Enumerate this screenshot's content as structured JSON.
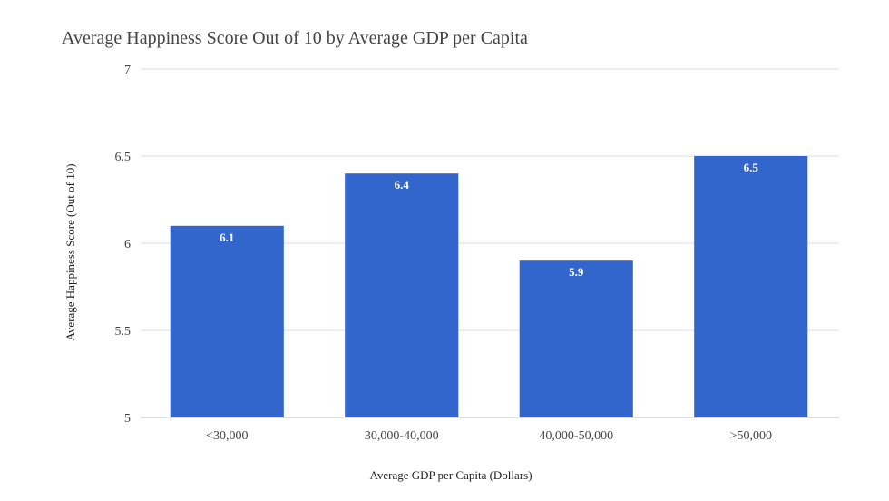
{
  "chart_data": {
    "type": "bar",
    "title": "Average Happiness Score Out of 10 by Average GDP per Capita",
    "xlabel": "Average GDP per Capita (Dollars)",
    "ylabel": "Average Happiness Score (Out of 10)",
    "categories": [
      "<30,000",
      "30,000-40,000",
      "40,000-50,000",
      ">50,000"
    ],
    "values": [
      6.1,
      6.4,
      5.9,
      6.5
    ],
    "data_labels": [
      "6.1",
      "6.4",
      "5.9",
      "6.5"
    ],
    "ylim": [
      5,
      7
    ],
    "yticks": [
      "5",
      "5.5",
      "6",
      "6.5",
      "7"
    ],
    "grid": true,
    "legend": "none",
    "colors": {
      "bar": "#3366cc",
      "grid": "#dddddd",
      "text": "#444444"
    }
  }
}
